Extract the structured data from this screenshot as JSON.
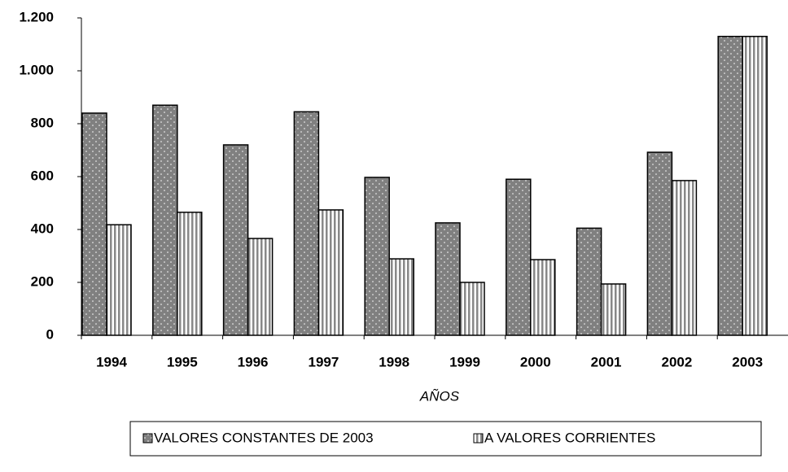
{
  "chart_data": {
    "type": "bar",
    "x_label": "AÑOS",
    "categories": [
      "1994",
      "1995",
      "1996",
      "1997",
      "1998",
      "1999",
      "2000",
      "2001",
      "2002",
      "2003"
    ],
    "series": [
      {
        "name": "VALORES CONSTANTES DE 2003",
        "color": "#808080",
        "values": [
          840,
          870,
          720,
          845,
          597,
          425,
          590,
          405,
          692,
          1130
        ]
      },
      {
        "name": "A VALORES CORRIENTES",
        "color": "#ffffff",
        "values": [
          418,
          465,
          366,
          474,
          289,
          200,
          286,
          194,
          585,
          1130
        ]
      }
    ],
    "ylim": [
      0,
      1200
    ],
    "yticks": [
      0,
      200,
      400,
      600,
      800,
      {
        "value": 1000,
        "label": "1.000"
      },
      {
        "value": 1200,
        "label": "1.200"
      }
    ],
    "grid": false,
    "legend": "bottom"
  }
}
